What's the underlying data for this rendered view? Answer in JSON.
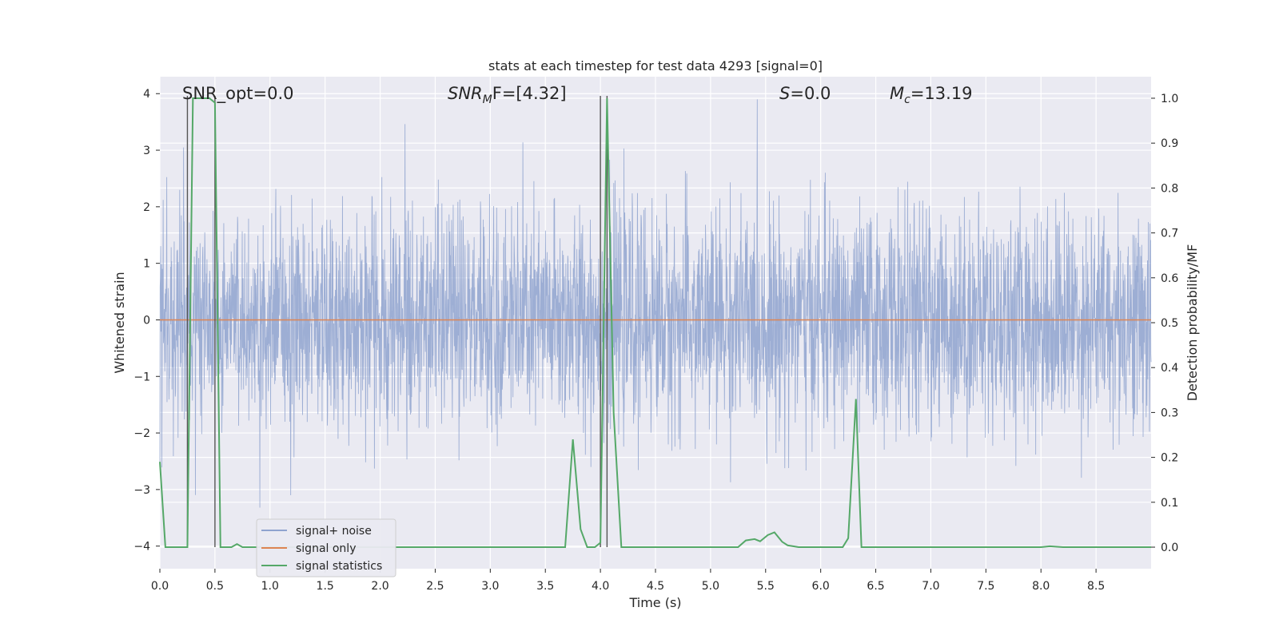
{
  "chart_data": {
    "type": "line",
    "title": "stats at each timestep for test data 4293 [signal=0]",
    "xlabel": "Time (s)",
    "ylabel": "Whitened strain",
    "y2label": "Detection probability/MF",
    "xlim": [
      0.0,
      9.0
    ],
    "ylim": [
      -4.4,
      4.3
    ],
    "y2lim": [
      -0.048,
      1.048
    ],
    "xticks": [
      "0.0",
      "0.5",
      "1.0",
      "1.5",
      "2.0",
      "2.5",
      "3.0",
      "3.5",
      "4.0",
      "4.5",
      "5.0",
      "5.5",
      "6.0",
      "6.5",
      "7.0",
      "7.5",
      "8.0",
      "8.5"
    ],
    "yticks": [
      "−4",
      "−3",
      "−2",
      "−1",
      "0",
      "1",
      "2",
      "3",
      "4"
    ],
    "y2ticks": [
      "0.0",
      "0.1",
      "0.2",
      "0.3",
      "0.4",
      "0.5",
      "0.6",
      "0.7",
      "0.8",
      "0.9",
      "1.0"
    ],
    "grid": true,
    "legend": {
      "placement": "lower-left",
      "entries": [
        "signal+ noise",
        "signal only",
        "signal statistics"
      ]
    },
    "annotations": {
      "snr_opt": "SNR_opt=0.0",
      "snr_mf_base": "SNR",
      "snr_mf_sub": "M",
      "snr_mf_rest": "F=[4.32]",
      "s_base": "S",
      "s_rest": "=0.0",
      "mc_base": "M",
      "mc_sub": "c",
      "mc_rest": "=13.19"
    },
    "vertical_lines_x": [
      0.25,
      0.5,
      4.0,
      4.06
    ],
    "series": [
      {
        "name": "signal+ noise",
        "color": "#8fa3cf",
        "description_values": "dense noise, approximately within ±2.5 with spikes up to about 3.9 and down to about -4.0",
        "range": [
          -4.0,
          3.9
        ]
      },
      {
        "name": "signal only",
        "color": "#dd8452",
        "values_constant": 0.0
      },
      {
        "name": "signal statistics",
        "color": "#55a868",
        "axis": "right",
        "x": [
          0.0,
          0.05,
          0.1,
          0.15,
          0.2,
          0.25,
          0.3,
          0.35,
          0.4,
          0.45,
          0.5,
          0.55,
          0.6,
          0.65,
          0.7,
          0.75,
          0.8,
          1.0,
          1.5,
          2.0,
          2.5,
          3.0,
          3.5,
          3.68,
          3.75,
          3.82,
          3.88,
          3.95,
          4.0,
          4.06,
          4.12,
          4.19,
          4.5,
          5.0,
          5.25,
          5.32,
          5.4,
          5.45,
          5.52,
          5.58,
          5.65,
          5.7,
          5.8,
          6.0,
          6.2,
          6.25,
          6.32,
          6.37,
          6.45,
          7.0,
          7.5,
          8.0,
          8.08,
          8.2,
          8.5,
          9.0
        ],
        "values": [
          0.19,
          0.0,
          0.0,
          0.0,
          0.0,
          0.0,
          1.0,
          1.0,
          1.0,
          1.0,
          0.99,
          0.0,
          0.0,
          0.0,
          0.007,
          0.0,
          0.0,
          0.0,
          0.0,
          0.0,
          0.0,
          0.0,
          0.0,
          0.0,
          0.24,
          0.04,
          0.0,
          0.0,
          0.01,
          1.0,
          0.3,
          0.0,
          0.0,
          0.0,
          0.0,
          0.015,
          0.018,
          0.013,
          0.027,
          0.033,
          0.012,
          0.004,
          0.0,
          0.0,
          0.0,
          0.02,
          0.33,
          0.0,
          0.0,
          0.0,
          0.0,
          0.0,
          0.002,
          0.0,
          0.0,
          0.0
        ]
      }
    ]
  }
}
